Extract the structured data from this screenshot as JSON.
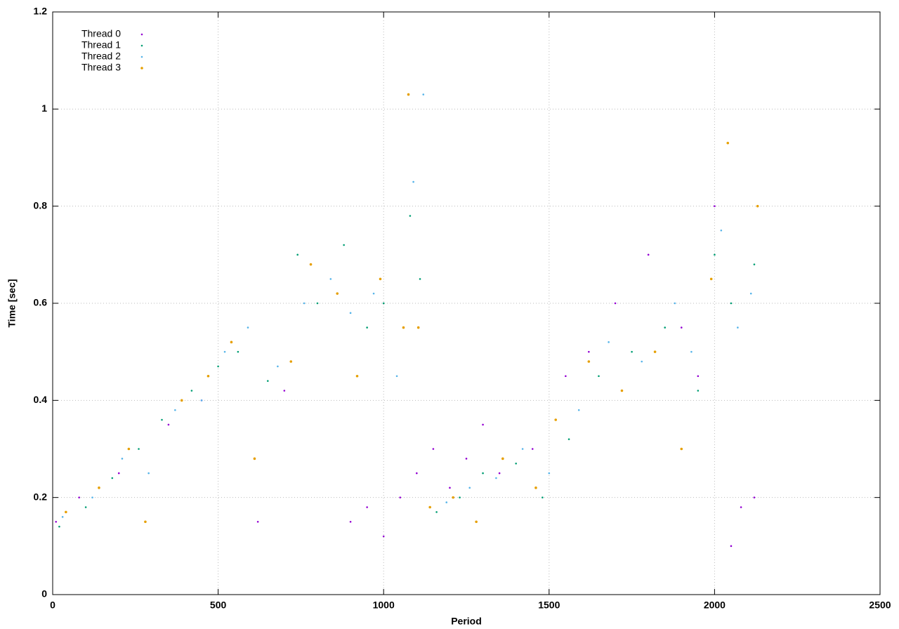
{
  "chart_data": {
    "type": "scatter",
    "xlabel": "Period",
    "ylabel": "Time [sec]",
    "xlim": [
      0,
      2500
    ],
    "ylim": [
      0,
      1.2
    ],
    "xticks": [
      0,
      500,
      1000,
      1500,
      2000,
      2500
    ],
    "yticks": [
      0,
      0.2,
      0.4,
      0.6,
      0.8,
      1,
      1.2
    ],
    "grid": true,
    "legend": "top-left",
    "series": [
      {
        "name": "Thread 0",
        "color": "#9400d3",
        "x": [
          10,
          80,
          200,
          350,
          450,
          620,
          700,
          900,
          950,
          1000,
          1050,
          1100,
          1150,
          1200,
          1250,
          1300,
          1350,
          1450,
          1550,
          1620,
          1700,
          1800,
          1900,
          1950,
          2000,
          2050,
          2080,
          2120
        ],
        "values": [
          0.15,
          0.2,
          0.25,
          0.35,
          0.4,
          0.15,
          0.42,
          0.15,
          0.18,
          0.12,
          0.2,
          0.25,
          0.3,
          0.22,
          0.28,
          0.35,
          0.25,
          0.3,
          0.45,
          0.5,
          0.6,
          0.7,
          0.55,
          0.45,
          0.8,
          0.1,
          0.18,
          0.2
        ]
      },
      {
        "name": "Thread 1",
        "color": "#009e73",
        "x": [
          20,
          100,
          180,
          260,
          330,
          420,
          500,
          560,
          650,
          740,
          800,
          880,
          950,
          1000,
          1080,
          1110,
          1160,
          1230,
          1300,
          1400,
          1480,
          1560,
          1650,
          1750,
          1850,
          1950,
          2000,
          2050,
          2120
        ],
        "values": [
          0.14,
          0.18,
          0.24,
          0.3,
          0.36,
          0.42,
          0.47,
          0.5,
          0.44,
          0.7,
          0.6,
          0.72,
          0.55,
          0.6,
          0.78,
          0.65,
          0.17,
          0.2,
          0.25,
          0.27,
          0.2,
          0.32,
          0.45,
          0.5,
          0.55,
          0.42,
          0.7,
          0.6,
          0.68
        ]
      },
      {
        "name": "Thread 2",
        "color": "#56b4e9",
        "x": [
          30,
          120,
          210,
          290,
          370,
          450,
          520,
          590,
          680,
          760,
          840,
          900,
          970,
          1040,
          1090,
          1120,
          1190,
          1260,
          1340,
          1420,
          1500,
          1590,
          1680,
          1780,
          1880,
          1930,
          2020,
          2070,
          2110
        ],
        "values": [
          0.16,
          0.2,
          0.28,
          0.25,
          0.38,
          0.4,
          0.5,
          0.55,
          0.47,
          0.6,
          0.65,
          0.58,
          0.62,
          0.45,
          0.85,
          1.03,
          0.19,
          0.22,
          0.24,
          0.3,
          0.25,
          0.38,
          0.52,
          0.48,
          0.6,
          0.5,
          0.75,
          0.55,
          0.62
        ]
      },
      {
        "name": "Thread 3",
        "color": "#e69f00",
        "x": [
          40,
          140,
          230,
          280,
          390,
          470,
          540,
          610,
          720,
          780,
          860,
          920,
          990,
          1060,
          1075,
          1105,
          1140,
          1210,
          1280,
          1360,
          1460,
          1520,
          1620,
          1720,
          1820,
          1900,
          1990,
          2040,
          2130
        ],
        "values": [
          0.17,
          0.22,
          0.3,
          0.15,
          0.4,
          0.45,
          0.52,
          0.28,
          0.48,
          0.68,
          0.62,
          0.45,
          0.65,
          0.55,
          1.03,
          0.55,
          0.18,
          0.2,
          0.15,
          0.28,
          0.22,
          0.36,
          0.48,
          0.42,
          0.5,
          0.3,
          0.65,
          0.93,
          0.8
        ]
      }
    ]
  }
}
